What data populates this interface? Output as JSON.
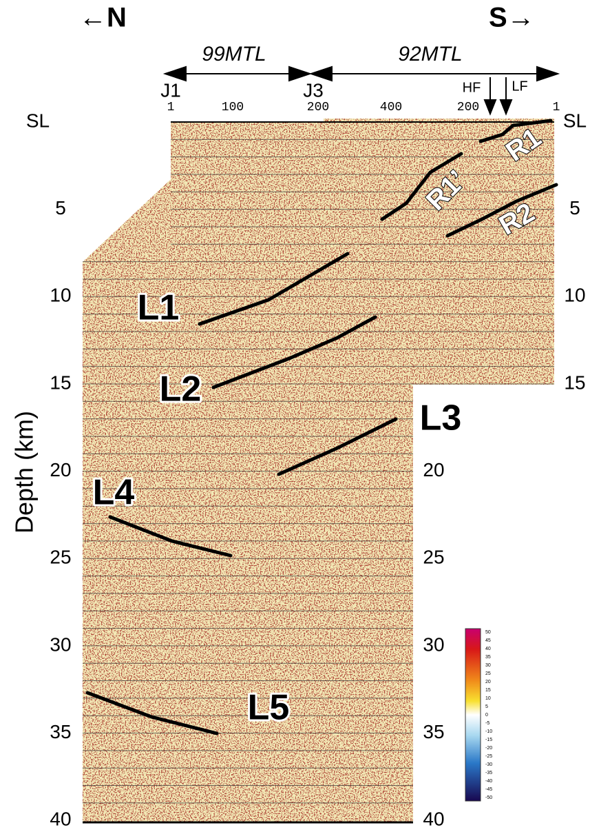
{
  "header": {
    "north": "←N",
    "south": "S→"
  },
  "profiles": [
    {
      "label": "99MTL",
      "start": "J1",
      "end": "J3"
    },
    {
      "label": "92MTL"
    }
  ],
  "cdp_labels": [
    "1",
    "100",
    "200",
    "400",
    "200",
    "1"
  ],
  "faults": [
    "HF",
    "LF"
  ],
  "depth_axis": {
    "label": "Depth (km)",
    "top": "SL",
    "ticks": [
      "5",
      "10",
      "15",
      "20",
      "25",
      "30",
      "35",
      "40"
    ]
  },
  "right_axis_upper": {
    "top": "SL",
    "ticks": [
      "5",
      "10",
      "15"
    ]
  },
  "right_axis_lower": {
    "ticks": [
      "20",
      "25",
      "30",
      "35",
      "40"
    ]
  },
  "reflectors": [
    "L1",
    "L2",
    "L3",
    "L4",
    "L5",
    "R1",
    "R1’",
    "R2"
  ],
  "colorbar": {
    "ticks": [
      "50",
      "45",
      "40",
      "35",
      "30",
      "25",
      "20",
      "15",
      "10",
      "5",
      "0",
      "-5",
      "-10",
      "-15",
      "-20",
      "-25",
      "-30",
      "-35",
      "-40",
      "-45",
      "-50"
    ]
  }
}
